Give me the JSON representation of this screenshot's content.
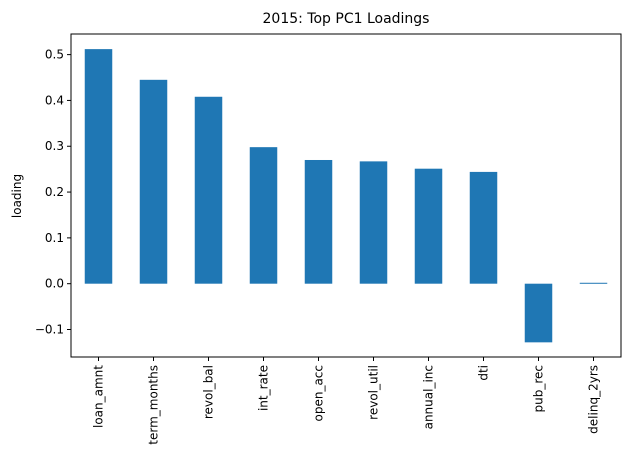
{
  "chart_data": {
    "type": "bar",
    "title": "2015: Top PC1 Loadings",
    "xlabel": "",
    "ylabel": "loading",
    "categories": [
      "loan_amnt",
      "term_months",
      "revol_bal",
      "int_rate",
      "open_acc",
      "revol_util",
      "annual_inc",
      "dti",
      "pub_rec",
      "delinq_2yrs"
    ],
    "values": [
      0.512,
      0.445,
      0.408,
      0.298,
      0.27,
      0.267,
      0.251,
      0.244,
      -0.128,
      0.002
    ],
    "ylim": [
      -0.16,
      0.545
    ],
    "yticks": [
      -0.1,
      0.0,
      0.1,
      0.2,
      0.3,
      0.4,
      0.5
    ],
    "ytick_labels": [
      "−0.1",
      "0.0",
      "0.1",
      "0.2",
      "0.3",
      "0.4",
      "0.5"
    ],
    "grid": false,
    "bar_color": "#1f77b4"
  }
}
